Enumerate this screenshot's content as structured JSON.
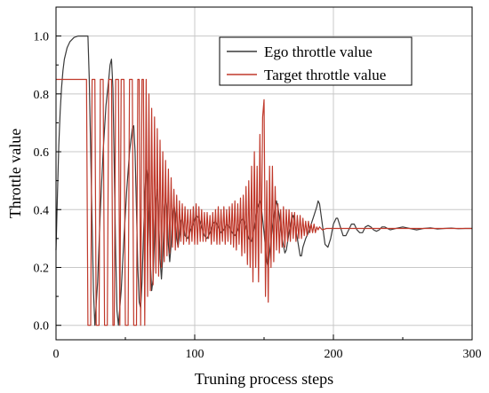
{
  "chart_data": {
    "type": "line",
    "title": "",
    "xlabel": "Truning process steps",
    "ylabel": "Throttle value",
    "xlim": [
      0,
      300
    ],
    "ylim": [
      -0.05,
      1.1
    ],
    "x_ticks": [
      0,
      100,
      200,
      300
    ],
    "y_ticks": [
      0.0,
      0.2,
      0.4,
      0.6,
      0.8,
      1.0
    ],
    "y_tick_labels": [
      "0.0",
      "0.2",
      "0.4",
      "0.6",
      "0.8",
      "1.0"
    ],
    "grid": true,
    "legend_position": "top-right",
    "series": [
      {
        "name": "Ego throttle value",
        "color": "#3a3a3a",
        "points": [
          [
            0,
            0.26
          ],
          [
            1,
            0.45
          ],
          [
            2,
            0.62
          ],
          [
            3,
            0.74
          ],
          [
            4,
            0.82
          ],
          [
            5,
            0.88
          ],
          [
            6,
            0.92
          ],
          [
            8,
            0.96
          ],
          [
            10,
            0.98
          ],
          [
            13,
            0.995
          ],
          [
            16,
            1.0
          ],
          [
            20,
            1.0
          ],
          [
            23,
            1.0
          ],
          [
            24,
            0.85
          ],
          [
            25,
            0.6
          ],
          [
            26,
            0.35
          ],
          [
            27,
            0.12
          ],
          [
            28,
            0.0
          ],
          [
            30,
            0.15
          ],
          [
            32,
            0.4
          ],
          [
            34,
            0.6
          ],
          [
            36,
            0.76
          ],
          [
            38,
            0.85
          ],
          [
            39,
            0.9
          ],
          [
            40,
            0.92
          ],
          [
            41,
            0.82
          ],
          [
            42,
            0.55
          ],
          [
            43,
            0.25
          ],
          [
            44,
            0.05
          ],
          [
            45,
            0.0
          ],
          [
            47,
            0.12
          ],
          [
            49,
            0.3
          ],
          [
            51,
            0.47
          ],
          [
            53,
            0.6
          ],
          [
            55,
            0.68
          ],
          [
            56,
            0.69
          ],
          [
            57,
            0.6
          ],
          [
            58,
            0.4
          ],
          [
            59,
            0.2
          ],
          [
            60,
            0.08
          ],
          [
            61,
            0.06
          ],
          [
            62,
            0.15
          ],
          [
            63,
            0.3
          ],
          [
            64,
            0.44
          ],
          [
            65,
            0.55
          ],
          [
            66,
            0.52
          ],
          [
            67,
            0.38
          ],
          [
            68,
            0.22
          ],
          [
            69,
            0.12
          ],
          [
            70,
            0.16
          ],
          [
            71,
            0.3
          ],
          [
            72,
            0.43
          ],
          [
            73,
            0.47
          ],
          [
            74,
            0.38
          ],
          [
            75,
            0.23
          ],
          [
            76,
            0.16
          ],
          [
            77,
            0.24
          ],
          [
            78,
            0.38
          ],
          [
            79,
            0.45
          ],
          [
            80,
            0.4
          ],
          [
            81,
            0.28
          ],
          [
            82,
            0.22
          ],
          [
            83,
            0.28
          ],
          [
            84,
            0.38
          ],
          [
            85,
            0.42
          ],
          [
            86,
            0.38
          ],
          [
            87,
            0.3
          ],
          [
            88,
            0.27
          ],
          [
            89,
            0.31
          ],
          [
            90,
            0.36
          ],
          [
            91,
            0.37
          ],
          [
            92,
            0.34
          ],
          [
            93,
            0.31
          ],
          [
            95,
            0.3
          ],
          [
            97,
            0.33
          ],
          [
            99,
            0.35
          ],
          [
            101,
            0.38
          ],
          [
            103,
            0.37
          ],
          [
            105,
            0.34
          ],
          [
            107,
            0.31
          ],
          [
            109,
            0.3
          ],
          [
            111,
            0.32
          ],
          [
            113,
            0.35
          ],
          [
            115,
            0.36
          ],
          [
            117,
            0.34
          ],
          [
            119,
            0.32
          ],
          [
            121,
            0.33
          ],
          [
            123,
            0.35
          ],
          [
            125,
            0.34
          ],
          [
            127,
            0.32
          ],
          [
            129,
            0.31
          ],
          [
            131,
            0.33
          ],
          [
            133,
            0.36
          ],
          [
            135,
            0.37
          ],
          [
            137,
            0.34
          ],
          [
            139,
            0.3
          ],
          [
            141,
            0.29
          ],
          [
            143,
            0.34
          ],
          [
            145,
            0.4
          ],
          [
            147,
            0.43
          ],
          [
            148,
            0.41
          ],
          [
            150,
            0.32
          ],
          [
            152,
            0.22
          ],
          [
            153,
            0.2
          ],
          [
            154,
            0.25
          ],
          [
            156,
            0.34
          ],
          [
            158,
            0.41
          ],
          [
            159,
            0.43
          ],
          [
            161,
            0.38
          ],
          [
            163,
            0.3
          ],
          [
            165,
            0.25
          ],
          [
            166,
            0.26
          ],
          [
            168,
            0.32
          ],
          [
            170,
            0.37
          ],
          [
            171,
            0.38
          ],
          [
            173,
            0.33
          ],
          [
            175,
            0.27
          ],
          [
            176,
            0.24
          ],
          [
            177,
            0.24
          ],
          [
            178,
            0.27
          ],
          [
            180,
            0.3
          ],
          [
            182,
            0.32
          ],
          [
            184,
            0.35
          ],
          [
            186,
            0.38
          ],
          [
            188,
            0.41
          ],
          [
            189,
            0.43
          ],
          [
            190,
            0.42
          ],
          [
            192,
            0.35
          ],
          [
            194,
            0.28
          ],
          [
            196,
            0.27
          ],
          [
            198,
            0.3
          ],
          [
            200,
            0.35
          ],
          [
            202,
            0.37
          ],
          [
            203,
            0.37
          ],
          [
            205,
            0.34
          ],
          [
            207,
            0.31
          ],
          [
            209,
            0.31
          ],
          [
            211,
            0.33
          ],
          [
            213,
            0.35
          ],
          [
            215,
            0.35
          ],
          [
            217,
            0.33
          ],
          [
            219,
            0.32
          ],
          [
            221,
            0.32
          ],
          [
            223,
            0.34
          ],
          [
            225,
            0.345
          ],
          [
            227,
            0.34
          ],
          [
            229,
            0.33
          ],
          [
            231,
            0.325
          ],
          [
            233,
            0.33
          ],
          [
            235,
            0.34
          ],
          [
            237,
            0.34
          ],
          [
            239,
            0.335
          ],
          [
            241,
            0.33
          ],
          [
            245,
            0.335
          ],
          [
            250,
            0.34
          ],
          [
            255,
            0.335
          ],
          [
            260,
            0.33
          ],
          [
            265,
            0.335
          ],
          [
            270,
            0.337
          ],
          [
            275,
            0.333
          ],
          [
            280,
            0.335
          ],
          [
            285,
            0.336
          ],
          [
            290,
            0.334
          ],
          [
            295,
            0.335
          ],
          [
            300,
            0.335
          ]
        ]
      },
      {
        "name": "Target throttle value",
        "color": "#c0392b",
        "points": [
          [
            0,
            0.85
          ],
          [
            22,
            0.85
          ],
          [
            23,
            0.0
          ],
          [
            25,
            0.0
          ],
          [
            26,
            0.85
          ],
          [
            28,
            0.85
          ],
          [
            29,
            0.0
          ],
          [
            31,
            0.0
          ],
          [
            32,
            0.85
          ],
          [
            34,
            0.85
          ],
          [
            35,
            0.0
          ],
          [
            37,
            0.0
          ],
          [
            38,
            0.85
          ],
          [
            40,
            0.85
          ],
          [
            41,
            0.0
          ],
          [
            42,
            0.0
          ],
          [
            43,
            0.85
          ],
          [
            45,
            0.85
          ],
          [
            46,
            0.0
          ],
          [
            47,
            0.85
          ],
          [
            49,
            0.85
          ],
          [
            50,
            0.0
          ],
          [
            52,
            0.0
          ],
          [
            53,
            0.85
          ],
          [
            55,
            0.85
          ],
          [
            56,
            0.0
          ],
          [
            58,
            0.0
          ],
          [
            59,
            0.85
          ],
          [
            60,
            0.85
          ],
          [
            61,
            0.0
          ],
          [
            62,
            0.85
          ],
          [
            63,
            0.85
          ],
          [
            64,
            0.0
          ],
          [
            65,
            0.85
          ],
          [
            66,
            0.1
          ],
          [
            67,
            0.8
          ],
          [
            68,
            0.12
          ],
          [
            69,
            0.75
          ],
          [
            70,
            0.14
          ],
          [
            71,
            0.72
          ],
          [
            72,
            0.18
          ],
          [
            73,
            0.68
          ],
          [
            74,
            0.17
          ],
          [
            75,
            0.64
          ],
          [
            76,
            0.2
          ],
          [
            77,
            0.6
          ],
          [
            78,
            0.22
          ],
          [
            79,
            0.57
          ],
          [
            80,
            0.24
          ],
          [
            81,
            0.54
          ],
          [
            82,
            0.25
          ],
          [
            83,
            0.51
          ],
          [
            84,
            0.27
          ],
          [
            85,
            0.47
          ],
          [
            86,
            0.26
          ],
          [
            87,
            0.45
          ],
          [
            88,
            0.27
          ],
          [
            89,
            0.43
          ],
          [
            90,
            0.29
          ],
          [
            91,
            0.42
          ],
          [
            92,
            0.28
          ],
          [
            93,
            0.41
          ],
          [
            94,
            0.29
          ],
          [
            95,
            0.4
          ],
          [
            96,
            0.28
          ],
          [
            97,
            0.4
          ],
          [
            98,
            0.29
          ],
          [
            99,
            0.41
          ],
          [
            100,
            0.28
          ],
          [
            101,
            0.42
          ],
          [
            102,
            0.28
          ],
          [
            103,
            0.41
          ],
          [
            104,
            0.29
          ],
          [
            105,
            0.4
          ],
          [
            106,
            0.29
          ],
          [
            107,
            0.39
          ],
          [
            108,
            0.29
          ],
          [
            109,
            0.39
          ],
          [
            110,
            0.3
          ],
          [
            111,
            0.38
          ],
          [
            112,
            0.28
          ],
          [
            113,
            0.39
          ],
          [
            114,
            0.29
          ],
          [
            115,
            0.4
          ],
          [
            116,
            0.28
          ],
          [
            117,
            0.41
          ],
          [
            118,
            0.28
          ],
          [
            119,
            0.4
          ],
          [
            120,
            0.29
          ],
          [
            121,
            0.41
          ],
          [
            122,
            0.28
          ],
          [
            123,
            0.4
          ],
          [
            124,
            0.29
          ],
          [
            125,
            0.41
          ],
          [
            126,
            0.28
          ],
          [
            127,
            0.42
          ],
          [
            128,
            0.27
          ],
          [
            129,
            0.43
          ],
          [
            130,
            0.26
          ],
          [
            131,
            0.42
          ],
          [
            132,
            0.28
          ],
          [
            133,
            0.44
          ],
          [
            134,
            0.24
          ],
          [
            135,
            0.45
          ],
          [
            136,
            0.25
          ],
          [
            137,
            0.48
          ],
          [
            138,
            0.21
          ],
          [
            139,
            0.5
          ],
          [
            140,
            0.2
          ],
          [
            141,
            0.55
          ],
          [
            142,
            0.15
          ],
          [
            143,
            0.6
          ],
          [
            144,
            0.2
          ],
          [
            145,
            0.55
          ],
          [
            146,
            0.15
          ],
          [
            147,
            0.66
          ],
          [
            148,
            0.25
          ],
          [
            149,
            0.72
          ],
          [
            150,
            0.78
          ],
          [
            151,
            0.1
          ],
          [
            152,
            0.5
          ],
          [
            153,
            0.08
          ],
          [
            154,
            0.55
          ],
          [
            155,
            0.2
          ],
          [
            156,
            0.55
          ],
          [
            157,
            0.22
          ],
          [
            158,
            0.48
          ],
          [
            159,
            0.26
          ],
          [
            160,
            0.42
          ],
          [
            161,
            0.25
          ],
          [
            162,
            0.4
          ],
          [
            163,
            0.27
          ],
          [
            164,
            0.41
          ],
          [
            165,
            0.27
          ],
          [
            166,
            0.4
          ],
          [
            167,
            0.29
          ],
          [
            168,
            0.4
          ],
          [
            169,
            0.29
          ],
          [
            170,
            0.39
          ],
          [
            171,
            0.3
          ],
          [
            172,
            0.39
          ],
          [
            173,
            0.29
          ],
          [
            174,
            0.38
          ],
          [
            175,
            0.3
          ],
          [
            176,
            0.38
          ],
          [
            177,
            0.3
          ],
          [
            178,
            0.37
          ],
          [
            179,
            0.31
          ],
          [
            180,
            0.36
          ],
          [
            181,
            0.31
          ],
          [
            182,
            0.36
          ],
          [
            183,
            0.32
          ],
          [
            184,
            0.35
          ],
          [
            185,
            0.32
          ],
          [
            186,
            0.35
          ],
          [
            187,
            0.32
          ],
          [
            188,
            0.34
          ],
          [
            189,
            0.33
          ],
          [
            190,
            0.34
          ],
          [
            192,
            0.33
          ],
          [
            195,
            0.335
          ],
          [
            200,
            0.335
          ],
          [
            300,
            0.335
          ]
        ]
      }
    ]
  }
}
